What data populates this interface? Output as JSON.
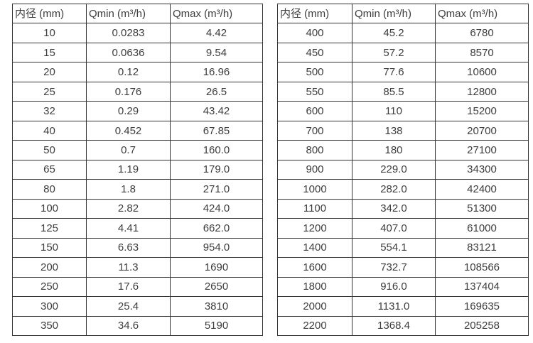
{
  "colors": {
    "background": "#ffffff",
    "table_border": "#333333",
    "text": "#3d3d3d"
  },
  "tables": [
    {
      "name": "flow-rate-table-dn10-350",
      "headers": [
        "内径 (mm)",
        "Qmin (m³/h)",
        "Qmax (m³/h)"
      ],
      "rows": [
        [
          "10",
          "0.0283",
          "4.42"
        ],
        [
          "15",
          "0.0636",
          "9.54"
        ],
        [
          "20",
          "0.12",
          "16.96"
        ],
        [
          "25",
          "0.176",
          "26.5"
        ],
        [
          "32",
          "0.29",
          "43.42"
        ],
        [
          "40",
          "0.452",
          "67.85"
        ],
        [
          "50",
          "0.7",
          "160.0"
        ],
        [
          "65",
          "1.19",
          "179.0"
        ],
        [
          "80",
          "1.8",
          "271.0"
        ],
        [
          "100",
          "2.82",
          "424.0"
        ],
        [
          "125",
          "4.41",
          "662.0"
        ],
        [
          "150",
          "6.63",
          "954.0"
        ],
        [
          "200",
          "11.3",
          "1690"
        ],
        [
          "250",
          "17.6",
          "2650"
        ],
        [
          "300",
          "25.4",
          "3810"
        ],
        [
          "350",
          "34.6",
          "5190"
        ]
      ]
    },
    {
      "name": "flow-rate-table-dn400-2200",
      "headers": [
        "内径 (mm)",
        "Qmin (m³/h)",
        "Qmax (m³/h)"
      ],
      "rows": [
        [
          "400",
          "45.2",
          "6780"
        ],
        [
          "450",
          "57.2",
          "8570"
        ],
        [
          "500",
          "77.6",
          "10600"
        ],
        [
          "550",
          "85.5",
          "12800"
        ],
        [
          "600",
          "110",
          "15200"
        ],
        [
          "700",
          "138",
          "20700"
        ],
        [
          "800",
          "180",
          "27100"
        ],
        [
          "900",
          "229.0",
          "34300"
        ],
        [
          "1000",
          "282.0",
          "42400"
        ],
        [
          "1100",
          "342.0",
          "51300"
        ],
        [
          "1200",
          "407.0",
          "61000"
        ],
        [
          "1400",
          "554.1",
          "83121"
        ],
        [
          "1600",
          "732.7",
          "108566"
        ],
        [
          "1800",
          "916.0",
          "137404"
        ],
        [
          "2000",
          "1131.0",
          "169635"
        ],
        [
          "2200",
          "1368.4",
          "205258"
        ]
      ]
    }
  ]
}
